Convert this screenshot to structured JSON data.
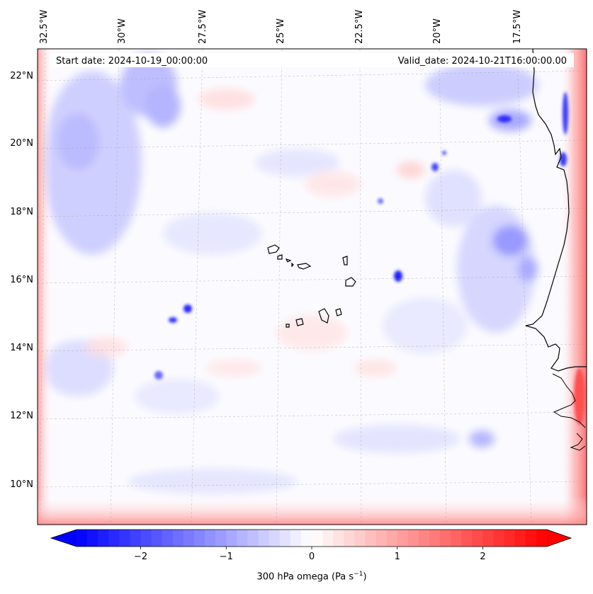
{
  "header": {
    "start_date": "Start date: 2024-10-19_00:00:00",
    "valid_date": "Valid_date: 2024-10-21T16:00:00.00"
  },
  "map": {
    "longitude_labels": [
      "32.5°W",
      "30°W",
      "27.5°W",
      "25°W",
      "22.5°W",
      "20°W",
      "17.5°W"
    ],
    "latitude_labels": [
      "22°N",
      "20°N",
      "18°N",
      "16°N",
      "14°N",
      "12°N",
      "10°N"
    ],
    "field": "300 hPa omega",
    "colormap": "bwr",
    "features": [
      "coastline",
      "cape-verde-islands",
      "west-africa-coast",
      "gridlines"
    ]
  },
  "colorbar": {
    "title_main": "300 hPa omega (Pa s",
    "title_exp": "−1",
    "title_end": ")",
    "ticks": [
      {
        "label": "−2",
        "value": -2
      },
      {
        "label": "−1",
        "value": -1
      },
      {
        "label": "0",
        "value": 0
      },
      {
        "label": "1",
        "value": 1
      },
      {
        "label": "2",
        "value": 2
      }
    ],
    "range": [
      -2.75,
      2.75
    ],
    "extend": "both",
    "colors": {
      "low": "#0000ff",
      "mid": "#ffffff",
      "high": "#ff0000"
    }
  }
}
